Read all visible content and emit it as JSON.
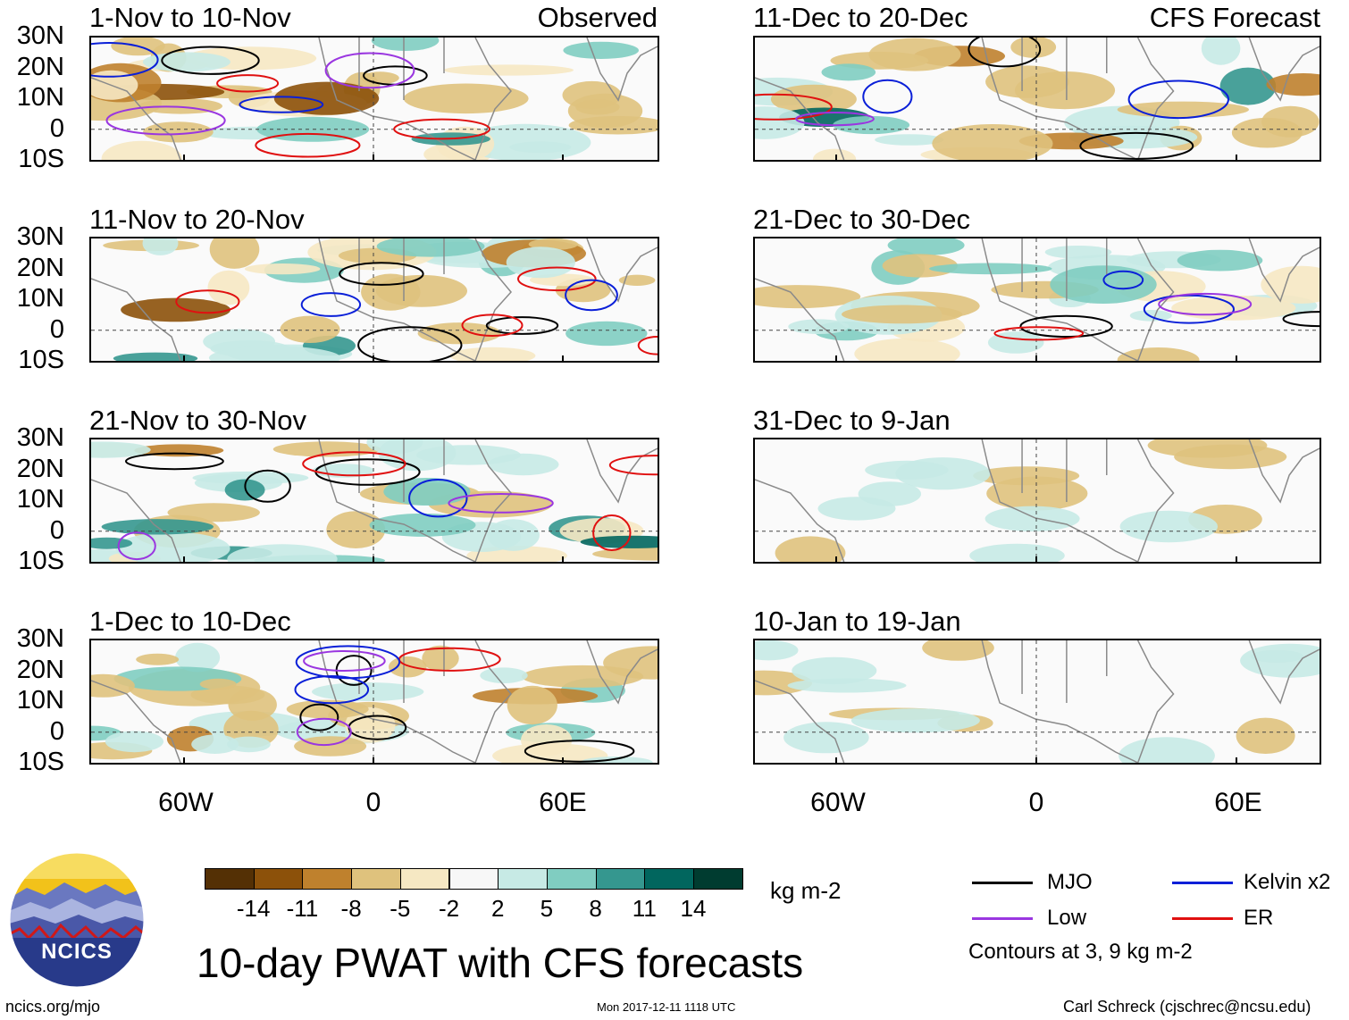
{
  "header": {
    "observed": "Observed",
    "forecast": "CFS Forecast"
  },
  "panels_left": [
    {
      "title": "1-Nov to 10-Nov"
    },
    {
      "title": "11-Nov to 20-Nov"
    },
    {
      "title": "21-Nov to 30-Nov"
    },
    {
      "title": "1-Dec to 10-Dec"
    }
  ],
  "panels_right": [
    {
      "title": "11-Dec to 20-Dec"
    },
    {
      "title": "21-Dec to 30-Dec"
    },
    {
      "title": "31-Dec to 9-Jan"
    },
    {
      "title": "10-Jan to 19-Jan"
    }
  ],
  "lat_labels": [
    "30N",
    "20N",
    "10N",
    "0",
    "10S"
  ],
  "lon_labels": [
    "60W",
    "0",
    "60E"
  ],
  "colorbar": {
    "unit": "kg m-2",
    "labels": [
      "-14",
      "-11",
      "-8",
      "-5",
      "-2",
      "2",
      "5",
      "8",
      "11",
      "14"
    ],
    "colors": [
      "#543005",
      "#8c510a",
      "#bf812d",
      "#dfc27d",
      "#f6e8c3",
      "#f7f7f7",
      "#c7eae5",
      "#80cdc1",
      "#35978f",
      "#01665e",
      "#003c30"
    ]
  },
  "legend": {
    "items": [
      {
        "label": "MJO",
        "color": "#000000"
      },
      {
        "label": "Kelvin x2",
        "color": "#0a1fd8"
      },
      {
        "label": "Low",
        "color": "#9a36e0"
      },
      {
        "label": "ER",
        "color": "#e01010"
      }
    ],
    "note": "Contours at 3, 9 kg m-2"
  },
  "logo": {
    "text": "NCICS"
  },
  "main_title": "10-day PWAT with CFS forecasts",
  "footer": {
    "url": "ncics.org/mjo",
    "timestamp": "Mon 2017-12-11 1118 UTC",
    "credit": "Carl Schreck (cjschrec@ncsu.edu)"
  }
}
